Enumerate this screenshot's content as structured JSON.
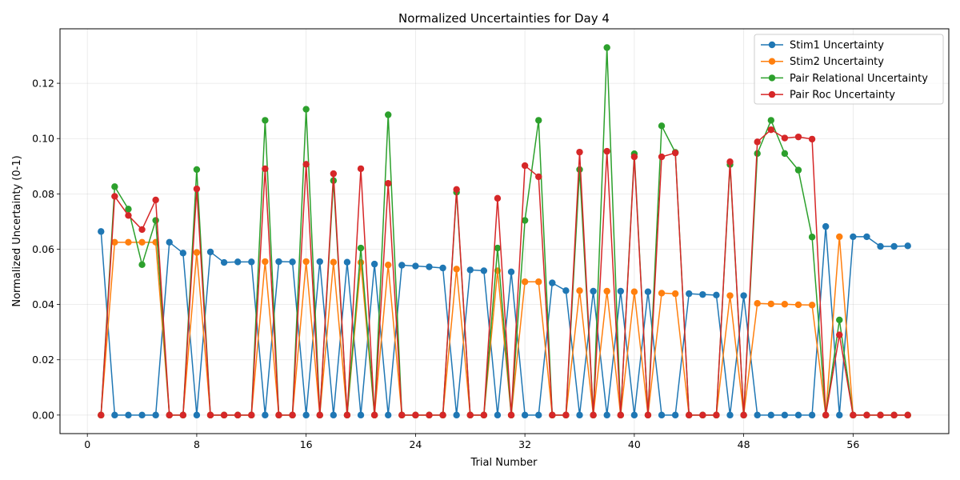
{
  "chart_data": {
    "type": "line",
    "title": "Normalized Uncertainties for Day 4",
    "xlabel": "Trial Number",
    "ylabel": "Normalized Uncertainty (0-1)",
    "xlim": [
      -2,
      63
    ],
    "ylim": [
      -0.0067,
      0.1397
    ],
    "xticks": [
      0,
      8,
      16,
      24,
      32,
      40,
      48,
      56
    ],
    "yticks": [
      0.0,
      0.02,
      0.04,
      0.06,
      0.08,
      0.1,
      0.12
    ],
    "ytick_labels": [
      "0.00",
      "0.02",
      "0.04",
      "0.06",
      "0.08",
      "0.10",
      "0.12"
    ],
    "grid": true,
    "legend_position": "top-right",
    "x": [
      1,
      2,
      3,
      4,
      5,
      6,
      7,
      8,
      9,
      10,
      11,
      12,
      13,
      14,
      15,
      16,
      17,
      18,
      19,
      20,
      21,
      22,
      23,
      24,
      25,
      26,
      27,
      28,
      29,
      30,
      31,
      32,
      33,
      34,
      35,
      36,
      37,
      38,
      39,
      40,
      41,
      42,
      43,
      44,
      45,
      46,
      47,
      48,
      49,
      50,
      51,
      52,
      53,
      54,
      55,
      56,
      57,
      58,
      59,
      60
    ],
    "series": [
      {
        "name": "Stim1 Uncertainty",
        "color": "#1f77b4",
        "values": [
          0.0664,
          0,
          0,
          0,
          0,
          0.0625,
          0.0586,
          0,
          0.059,
          0.0552,
          0.0554,
          0.0554,
          0,
          0.0555,
          0.0554,
          0,
          0.0555,
          0,
          0.0553,
          0,
          0.0546,
          0,
          0.0542,
          0.0539,
          0.0536,
          0.0532,
          0,
          0.0525,
          0.0522,
          0,
          0.0518,
          0,
          0,
          0.0478,
          0.045,
          0,
          0.0448,
          0,
          0.0448,
          0,
          0.0446,
          0,
          0,
          0.0439,
          0.0436,
          0.0434,
          0,
          0.0432,
          0,
          0,
          0,
          0,
          0,
          0.0682,
          0,
          0.0645,
          0.0645,
          0.061,
          0.061,
          0.0612
        ]
      },
      {
        "name": "Stim2 Uncertainty",
        "color": "#ff7f0e",
        "values": [
          0,
          0.0625,
          0.0625,
          0.0625,
          0.0625,
          0,
          0,
          0.0588,
          0,
          0,
          0,
          0,
          0.0555,
          0,
          0,
          0.0555,
          0,
          0.0553,
          0,
          0.0552,
          0,
          0.0543,
          0,
          0,
          0,
          0,
          0.0528,
          0,
          0,
          0.0522,
          0,
          0.0482,
          0.0482,
          0,
          0,
          0.045,
          0,
          0.0448,
          0,
          0.0446,
          0,
          0.0441,
          0.0439,
          0,
          0,
          0,
          0.0432,
          0,
          0.0404,
          0.0402,
          0.0401,
          0.0399,
          0.0398,
          0,
          0.0645,
          0,
          0,
          0,
          0,
          0
        ]
      },
      {
        "name": "Pair Relational Uncertainty",
        "color": "#2ca02c",
        "values": [
          0,
          0.0826,
          0.0745,
          0.0544,
          0.0704,
          0,
          0,
          0.0888,
          0,
          0,
          0,
          0,
          0.1066,
          0,
          0,
          0.1106,
          0,
          0.0848,
          0,
          0.0604,
          0,
          0.1086,
          0,
          0,
          0,
          0,
          0.0806,
          0,
          0,
          0.0604,
          0,
          0.0704,
          0.1066,
          0,
          0,
          0.0888,
          0,
          0.1329,
          0,
          0.0945,
          0,
          0.1046,
          0.095,
          0,
          0,
          0,
          0.0906,
          0,
          0.0946,
          0.1066,
          0.0946,
          0.0886,
          0.0644,
          0,
          0.0344,
          0,
          0,
          0,
          0,
          0
        ]
      },
      {
        "name": "Pair Roc Uncertainty",
        "color": "#d62728",
        "values": [
          0,
          0.0791,
          0.0722,
          0.0671,
          0.0778,
          0,
          0,
          0.0818,
          0,
          0,
          0,
          0,
          0.0891,
          0,
          0,
          0.0907,
          0,
          0.0873,
          0,
          0.0891,
          0,
          0.0838,
          0,
          0,
          0,
          0,
          0.0816,
          0,
          0,
          0.0784,
          0,
          0.0902,
          0.0862,
          0,
          0,
          0.0951,
          0,
          0.0954,
          0,
          0.0934,
          0,
          0.0934,
          0.0948,
          0,
          0,
          0,
          0.0916,
          0,
          0.0988,
          0.1032,
          0.1002,
          0.1006,
          0.0998,
          0,
          0.029,
          0,
          0,
          0,
          0,
          0
        ]
      }
    ]
  }
}
